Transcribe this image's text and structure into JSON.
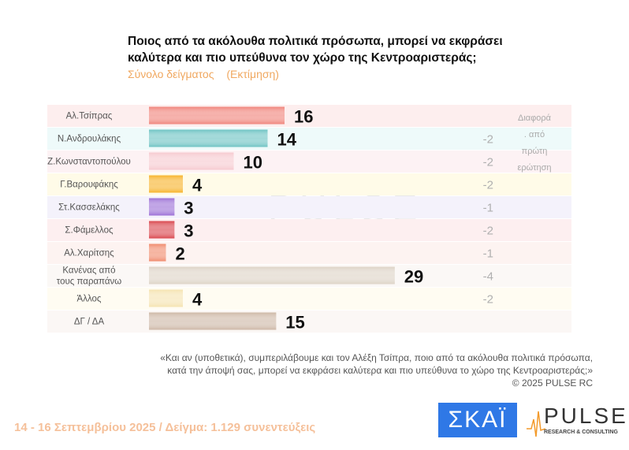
{
  "chart_data": {
    "type": "bar",
    "orientation": "horizontal",
    "title": "Ποιος από τα ακόλουθα πολιτικά πρόσωπα, μπορεί να εκφράσει καλύτερα και πιο υπεύθυνα τον χώρο της Κεντροαριστεράς;",
    "title_lines": [
      "Ποιος από τα ακόλουθα πολιτικά πρόσωπα, μπορεί να εκφράσει",
      "καλύτερα και πιο υπεύθυνα τον χώρο της Κεντροαριστεράς;"
    ],
    "subtitle": [
      "Σύνολο δείγματος",
      "(Εκτίμηση)"
    ],
    "categories": [
      "Αλ.Τσίπρας",
      "Ν.Ανδρουλάκης",
      "Ζ.Κωνσταντοπούλου",
      "Γ.Βαρουφάκης",
      "Στ.Κασσελάκης",
      "Σ.Φάμελλος",
      "Αλ.Χαρίτσης",
      "Κανένας από|τους παραπάνω",
      "Άλλος",
      "ΔΓ / ΔΑ"
    ],
    "values": [
      16,
      14,
      10,
      4,
      3,
      3,
      2,
      29,
      4,
      15
    ],
    "colors": [
      "#f0837a",
      "#6cc3c3",
      "#f6c9cf",
      "#f7b32b",
      "#9b6fd6",
      "#d9454c",
      "#f08a6c",
      "#ddd3c6",
      "#f5e3b0",
      "#cdb7a6"
    ],
    "row_tints": [
      "#fdeeee",
      "#eefafa",
      "#fdf2f4",
      "#fffbe8",
      "#f4f2fb",
      "#fdeff0",
      "#fdf3f1",
      "#fbf8f6",
      "#fffcf2",
      "#fbf7f5"
    ],
    "diff_header": [
      "Διαφορά",
      ". από",
      "πρώτη",
      "ερώτηση"
    ],
    "diffs": [
      null,
      "-2",
      "-2",
      "-2",
      "-1",
      "-2",
      "-1",
      "-4",
      "-2",
      null
    ],
    "xlim": [
      0,
      30
    ]
  },
  "note": [
    "«Και αν (υποθετικά), συμπεριλάβουμε και τον Αλέξη Τσίπρα, ποιο από τα ακόλουθα πολιτικά πρόσωπα,",
    "κατά την άποψή σας, μπορεί να εκφράσει καλύτερα και πιο υπεύθυνα το χώρο της Κεντροαριστεράς;»",
    "©  2025  PULSE RC"
  ],
  "footer": "14 - 16 Σεπτεμβρίου 2025  /  Δείγμα:  1.129 συνεντεύξεις",
  "logos": {
    "skai": "ΣΚΑΪ",
    "pulse": "PULSE",
    "pulse_tag": "RESEARCH & CONSULTING"
  }
}
